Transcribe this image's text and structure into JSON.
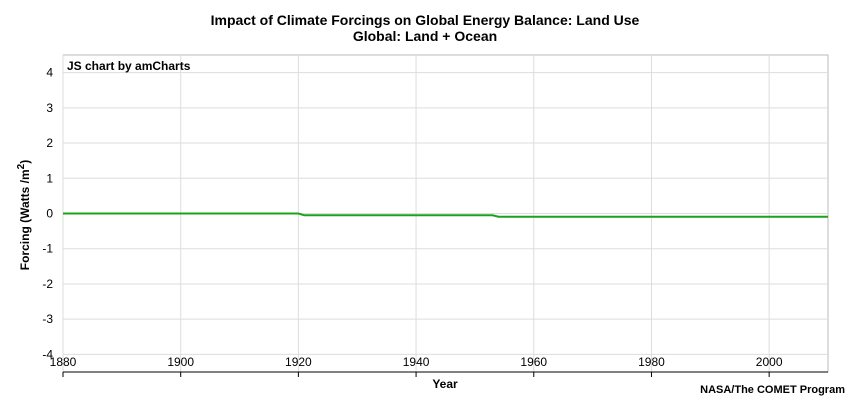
{
  "chart_data": {
    "type": "line",
    "title": "Impact of Climate Forcings on Global Energy Balance: Land Use",
    "subtitle": "Global: Land + Ocean",
    "xlabel": "Year",
    "ylabel_text": "Forcing (Watts /m",
    "ylabel_sup": "2",
    "ylabel_close": ")",
    "xlim": [
      1880,
      2010
    ],
    "ylim": [
      -4.5,
      4.5
    ],
    "x_ticks": [
      1880,
      1900,
      1920,
      1940,
      1960,
      1980,
      2000
    ],
    "y_ticks": [
      4,
      3,
      2,
      1,
      0,
      -1,
      -2,
      -3,
      -4
    ],
    "grid": true,
    "legend": "none",
    "series": [
      {
        "color": "#1aa31a",
        "x": [
          1880,
          1920,
          1921,
          1953,
          1954,
          2010
        ],
        "y": [
          0,
          0,
          -0.05,
          -0.05,
          -0.09,
          -0.09
        ]
      }
    ],
    "credit": "JS chart by amCharts",
    "source": "NASA/The COMET Program"
  }
}
